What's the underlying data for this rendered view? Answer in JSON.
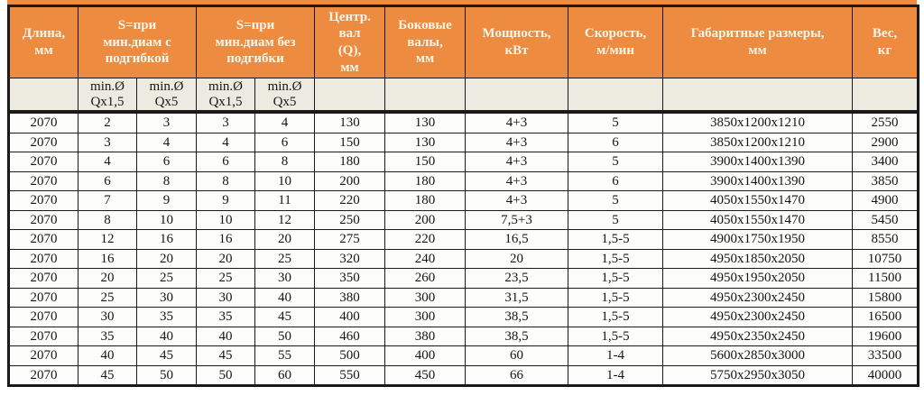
{
  "colors": {
    "page_bg": "#FFFFFF",
    "header_bg": "#ED8B40",
    "header_text": "#FCF6EA",
    "subheader_bg": "#EDEBE0",
    "row_bg": "#FDFDFB",
    "border": "#1A1A1A"
  },
  "table": {
    "top_headers": [
      {
        "label": "Длина,\nмм",
        "colspan": 1
      },
      {
        "label": "S=при\nмин.диам с\nподгибкой",
        "colspan": 2
      },
      {
        "label": "S=при\nмин.диам без\nподгибки",
        "colspan": 2
      },
      {
        "label": "Центр.\nвал\n(Q),\nмм",
        "colspan": 1
      },
      {
        "label": "Боковые\nвалы,\nмм",
        "colspan": 1
      },
      {
        "label": "Мощность,\nкВт",
        "colspan": 1
      },
      {
        "label": "Скорость,\nм/мин",
        "colspan": 1
      },
      {
        "label": "Габаритные размеры,\nмм",
        "colspan": 1
      },
      {
        "label": "Вес,\nкг",
        "colspan": 1
      }
    ],
    "sub_headers": [
      "",
      "min.Ø\nQx1,5",
      "min.Ø\nQx5",
      "min.Ø\nQx1,5",
      "min.Ø\nQx5",
      "",
      "",
      "",
      "",
      "",
      ""
    ],
    "rows": [
      [
        "2070",
        "2",
        "3",
        "3",
        "4",
        "130",
        "130",
        "4+3",
        "5",
        "3850x1200x1210",
        "2550"
      ],
      [
        "2070",
        "3",
        "4",
        "4",
        "6",
        "150",
        "130",
        "4+3",
        "6",
        "3850x1200x1210",
        "2900"
      ],
      [
        "2070",
        "4",
        "6",
        "6",
        "8",
        "180",
        "150",
        "4+3",
        "5",
        "3900x1400x1390",
        "3400"
      ],
      [
        "2070",
        "6",
        "8",
        "8",
        "10",
        "200",
        "180",
        "4+3",
        "6",
        "3900x1400x1390",
        "3850"
      ],
      [
        "2070",
        "7",
        "9",
        "9",
        "11",
        "220",
        "180",
        "4+3",
        "5",
        "4050x1550x1470",
        "4900"
      ],
      [
        "2070",
        "8",
        "10",
        "10",
        "12",
        "250",
        "200",
        "7,5+3",
        "5",
        "4050x1550x1470",
        "5450"
      ],
      [
        "2070",
        "12",
        "16",
        "16",
        "20",
        "275",
        "220",
        "16,5",
        "1,5-5",
        "4900x1750x1950",
        "8550"
      ],
      [
        "2070",
        "16",
        "20",
        "20",
        "25",
        "320",
        "240",
        "20",
        "1,5-5",
        "4950x1850x2050",
        "10750"
      ],
      [
        "2070",
        "20",
        "25",
        "25",
        "30",
        "350",
        "260",
        "23,5",
        "1,5-5",
        "4950x1950x2050",
        "11500"
      ],
      [
        "2070",
        "25",
        "30",
        "30",
        "40",
        "380",
        "300",
        "31,5",
        "1,5-5",
        "4950x2300x2450",
        "15800"
      ],
      [
        "2070",
        "30",
        "35",
        "35",
        "45",
        "400",
        "300",
        "38,5",
        "1,5-5",
        "4950x2300x2450",
        "16500"
      ],
      [
        "2070",
        "35",
        "40",
        "40",
        "50",
        "460",
        "380",
        "38,5",
        "1,5-5",
        "4950x2350x2450",
        "19600"
      ],
      [
        "2070",
        "40",
        "45",
        "45",
        "55",
        "500",
        "400",
        "60",
        "1-4",
        "5600x2850x3000",
        "33500"
      ],
      [
        "2070",
        "45",
        "50",
        "50",
        "60",
        "550",
        "450",
        "66",
        "1-4",
        "5750x2950x3050",
        "40000"
      ]
    ]
  }
}
